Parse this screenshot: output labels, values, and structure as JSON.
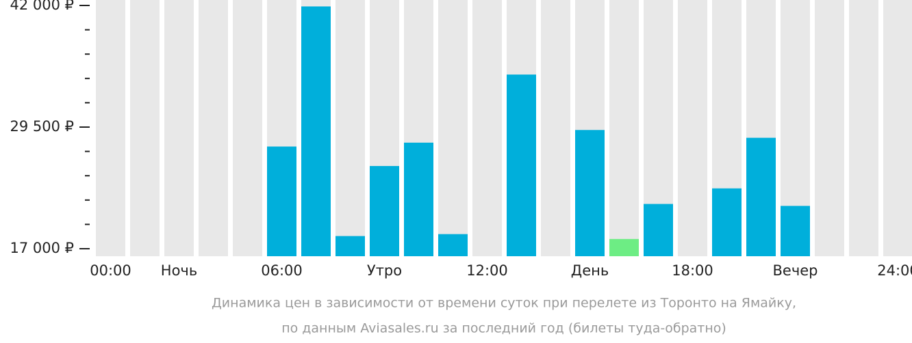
{
  "chart_data": {
    "type": "bar",
    "categories": [
      "00:00",
      null,
      "Ночь",
      null,
      null,
      "06:00",
      null,
      null,
      "Утро",
      null,
      null,
      "12:00",
      null,
      null,
      "День",
      null,
      null,
      "18:00",
      null,
      null,
      "Вечер",
      null,
      null,
      "24:00"
    ],
    "values": [
      null,
      null,
      null,
      null,
      null,
      27500,
      41900,
      18300,
      25500,
      27900,
      18500,
      null,
      34900,
      null,
      29200,
      18000,
      21600,
      null,
      23200,
      28400,
      21400,
      null,
      null,
      null
    ],
    "colors": [
      null,
      null,
      null,
      null,
      null,
      "#00afdb",
      "#00afdb",
      "#00afdb",
      "#00afdb",
      "#00afdb",
      "#00afdb",
      null,
      "#00afdb",
      null,
      "#00afdb",
      "#6ded84",
      "#00afdb",
      null,
      "#00afdb",
      "#00afdb",
      "#00afdb",
      null,
      null,
      null
    ],
    "background_color": "#e8e8e8",
    "ylim": [
      17000,
      42000
    ],
    "yticks": [
      {
        "value": 17000,
        "label": "17 000 ₽"
      },
      {
        "value": 29500,
        "label": "29 500 ₽"
      },
      {
        "value": 42000,
        "label": "42 000 ₽"
      }
    ],
    "minor_yticks": [
      19500,
      22000,
      24500,
      27000,
      32000,
      34500,
      37000,
      39500
    ],
    "caption": [
      "Динамика цен в зависимости от времени суток при перелете из Торонто на Ямайку,",
      "по данным Aviasales.ru за последний год (билеты туда-обратно)"
    ]
  }
}
